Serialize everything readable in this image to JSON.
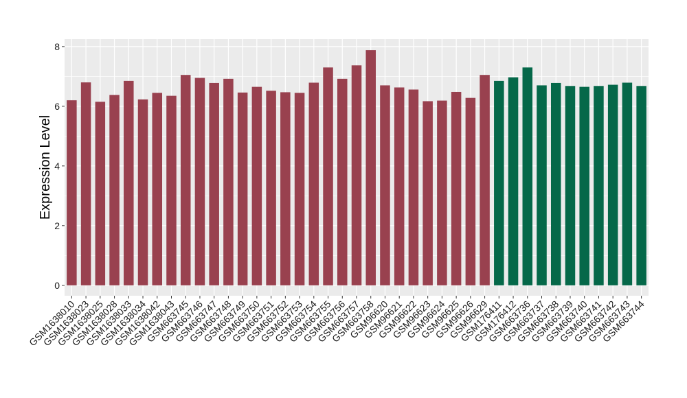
{
  "chart_data": {
    "type": "bar",
    "ylabel": "Expression Level",
    "xlabel": "",
    "ylim": [
      -0.35,
      8.25
    ],
    "yticks": [
      0,
      2,
      4,
      6,
      8
    ],
    "grid": true,
    "categories": [
      "GSM1638010",
      "GSM1638023",
      "GSM1638025",
      "GSM1638028",
      "GSM1638033",
      "GSM1638034",
      "GSM1638042",
      "GSM1638043",
      "GSM663745",
      "GSM663746",
      "GSM663747",
      "GSM663748",
      "GSM663749",
      "GSM663750",
      "GSM663751",
      "GSM663752",
      "GSM663753",
      "GSM663754",
      "GSM663755",
      "GSM663756",
      "GSM663757",
      "GSM663758",
      "GSM96620",
      "GSM96621",
      "GSM96622",
      "GSM96623",
      "GSM96624",
      "GSM96625",
      "GSM96626",
      "GSM96629",
      "GSM176411",
      "GSM176412",
      "GSM663736",
      "GSM663737",
      "GSM663738",
      "GSM663739",
      "GSM663740",
      "GSM663741",
      "GSM663742",
      "GSM663743",
      "GSM663744"
    ],
    "values": [
      6.2,
      6.8,
      6.15,
      6.38,
      6.85,
      6.23,
      6.45,
      6.35,
      7.05,
      6.95,
      6.78,
      6.92,
      6.46,
      6.65,
      6.52,
      6.47,
      6.45,
      6.79,
      7.3,
      6.92,
      7.37,
      7.88,
      6.7,
      6.63,
      6.56,
      6.17,
      6.19,
      6.48,
      6.28,
      7.05,
      6.85,
      6.97,
      7.3,
      6.7,
      6.78,
      6.68,
      6.65,
      6.68,
      6.72,
      6.79,
      6.68
    ],
    "groups": [
      "a",
      "a",
      "a",
      "a",
      "a",
      "a",
      "a",
      "a",
      "a",
      "a",
      "a",
      "a",
      "a",
      "a",
      "a",
      "a",
      "a",
      "a",
      "a",
      "a",
      "a",
      "a",
      "a",
      "a",
      "a",
      "a",
      "a",
      "a",
      "a",
      "a",
      "b",
      "b",
      "b",
      "b",
      "b",
      "b",
      "b",
      "b",
      "b",
      "b",
      "b"
    ],
    "colors": {
      "a": "#99414f",
      "b": "#056849"
    },
    "panel_background": "#ebebeb",
    "grid_color": "#ffffff"
  }
}
